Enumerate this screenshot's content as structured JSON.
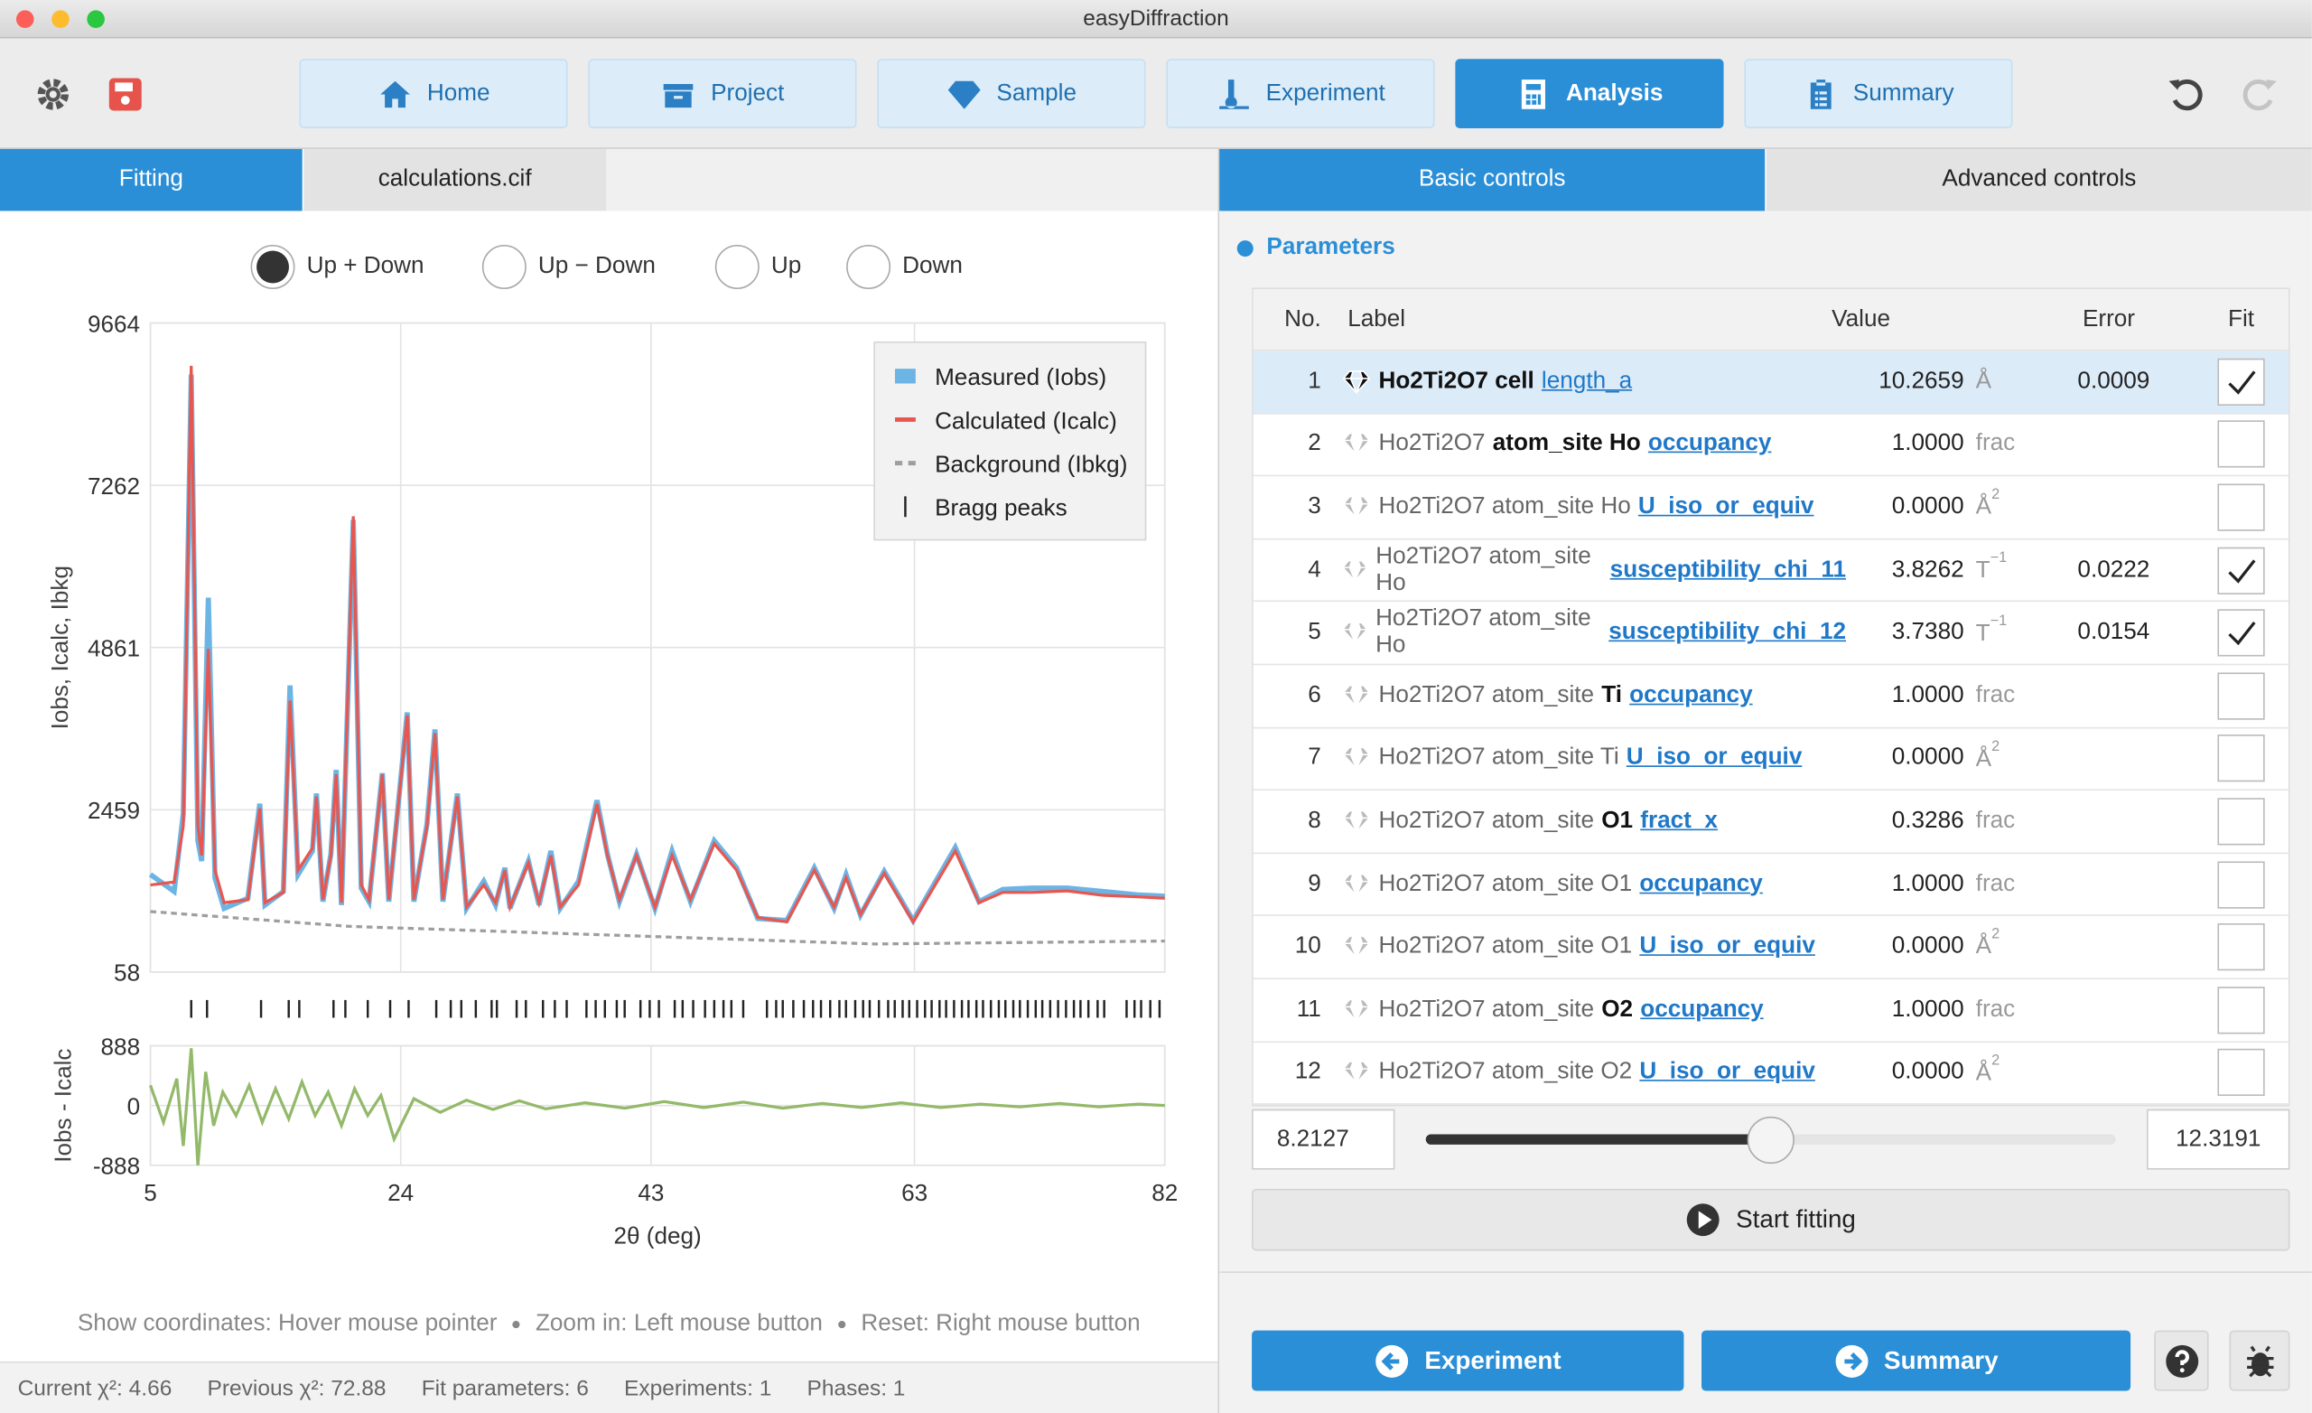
{
  "window": {
    "title": "easyDiffraction"
  },
  "toolbar": {
    "tabs": [
      "Home",
      "Project",
      "Sample",
      "Experiment",
      "Analysis",
      "Summary"
    ],
    "active": 4
  },
  "left_tabs": {
    "tabs": [
      "Fitting",
      "calculations.cif"
    ],
    "active": 0
  },
  "right_tabs": {
    "tabs": [
      "Basic controls",
      "Advanced controls"
    ],
    "active": 0
  },
  "plot_modes": {
    "options": [
      "Up + Down",
      "Up − Down",
      "Up",
      "Down"
    ],
    "selected": 0
  },
  "chart_data": {
    "type": "line",
    "xlabel": "2θ (deg)",
    "ylabel": "Iobs, Icalc, Ibkg",
    "xlim": [
      5,
      82
    ],
    "xticks": [
      5,
      24,
      43,
      63,
      82
    ],
    "ylim": [
      58,
      9664
    ],
    "yticks": [
      58,
      2459,
      4861,
      7262,
      9664
    ],
    "grid": true,
    "legend": "top-right",
    "x": [
      5.0,
      6.8,
      7.5,
      8.1,
      8.6,
      8.9,
      9.4,
      9.9,
      10.6,
      12.4,
      13.3,
      13.7,
      15.1,
      15.6,
      16.2,
      17.3,
      17.6,
      18.1,
      18.7,
      19.1,
      19.5,
      20.4,
      21.0,
      21.6,
      22.6,
      23.1,
      24.5,
      25.0,
      26.0,
      26.6,
      27.2,
      28.3,
      29.0,
      30.3,
      31.2,
      31.9,
      32.3,
      33.7,
      34.5,
      35.4,
      36.1,
      37.5,
      38.9,
      39.7,
      40.6,
      41.9,
      43.3,
      44.6,
      46.0,
      47.8,
      49.5,
      51.1,
      53.3,
      55.4,
      56.9,
      57.8,
      58.9,
      60.7,
      62.9,
      66.1,
      67.9,
      69.7,
      71.9,
      74.6,
      77.3,
      79.9,
      82.0
    ],
    "series": [
      {
        "name": "Measured (Iobs)",
        "color": "#6cb4e4",
        "values": [
          1500,
          1250,
          2400,
          8900,
          2000,
          1700,
          5600,
          1450,
          1000,
          1150,
          2550,
          1050,
          1250,
          4300,
          1500,
          1850,
          2700,
          1100,
          1800,
          3050,
          1050,
          6750,
          1300,
          1100,
          3000,
          1100,
          3900,
          1100,
          2250,
          3650,
          1100,
          2700,
          1000,
          1400,
          1050,
          1600,
          1000,
          1700,
          1050,
          1850,
          1000,
          1400,
          2600,
          1800,
          1100,
          1800,
          1000,
          1850,
          1100,
          2000,
          1600,
          850,
          820,
          1600,
          1000,
          1500,
          900,
          1550,
          820,
          1900,
          1100,
          1280,
          1300,
          1300,
          1250,
          1200,
          1180
        ]
      },
      {
        "name": "Calculated (Icalc)",
        "color": "#e8574f",
        "values": [
          1346,
          1390,
          2219,
          9031,
          2219,
          1783,
          4839,
          1564,
          1084,
          1127,
          2481,
          1084,
          1237,
          4075,
          1564,
          1892,
          2656,
          1127,
          1783,
          2984,
          1084,
          6804,
          1346,
          1127,
          2984,
          1127,
          3857,
          1127,
          2219,
          3595,
          1127,
          2656,
          1019,
          1346,
          1084,
          1564,
          1019,
          1674,
          1084,
          1783,
          1019,
          1346,
          2547,
          1783,
          1127,
          1783,
          1019,
          1783,
          1127,
          1957,
          1564,
          866,
          800,
          1564,
          1019,
          1455,
          909,
          1521,
          800,
          1848,
          1084,
          1237,
          1237,
          1259,
          1193,
          1171,
          1149
        ]
      }
    ],
    "background": {
      "name": "Background (Ibkg)",
      "color": "#9e9e9e",
      "x": [
        5,
        20,
        40,
        60,
        82
      ],
      "values": [
        953,
        735,
        604,
        473,
        516
      ]
    },
    "bragg": {
      "name": "Bragg peaks",
      "color": "#222222",
      "x": [
        8.1,
        9.3,
        13.4,
        15.5,
        16.3,
        18.9,
        19.8,
        21.5,
        23.2,
        24.6,
        26.7,
        27.8,
        28.6,
        29.7,
        30.9,
        31.3,
        32.8,
        33.5,
        34.8,
        35.7,
        36.6,
        38.1,
        38.8,
        39.5,
        40.4,
        41.0,
        42.2,
        42.9,
        43.6,
        44.8,
        45.4,
        46.2,
        47.1,
        47.8,
        48.5,
        49.1,
        50.0,
        51.8,
        52.5,
        53.0,
        53.8,
        54.6,
        55.3,
        55.9,
        56.6,
        57.3,
        57.8,
        58.5,
        59.1,
        59.6,
        60.3,
        61.0,
        61.5,
        62.1,
        62.6,
        63.2,
        63.8,
        64.3,
        64.9,
        65.4,
        66.0,
        66.6,
        67.1,
        67.7,
        68.2,
        68.8,
        69.4,
        69.9,
        70.5,
        71.0,
        71.6,
        72.2,
        72.7,
        73.3,
        73.9,
        74.5,
        75.1,
        75.6,
        76.2,
        76.9,
        77.4,
        79.1,
        79.7,
        80.2,
        80.9,
        81.6
      ]
    },
    "residual": {
      "ylabel": "Iobs - Icalc",
      "ylim": [
        -888,
        888
      ],
      "yticks": [
        -888,
        0,
        888
      ],
      "color": "#93b96a",
      "x": [
        5,
        6,
        7,
        7.5,
        8.1,
        8.6,
        9.2,
        9.8,
        10.5,
        11.5,
        12.5,
        13.5,
        14.5,
        15.5,
        16.5,
        17.5,
        18.5,
        19.5,
        20.5,
        21.5,
        22.5,
        23.5,
        25,
        27,
        29,
        31,
        33,
        35,
        38,
        41,
        44,
        47,
        50,
        53,
        56,
        59,
        62,
        65,
        68,
        71,
        74,
        77,
        80,
        82
      ],
      "values": [
        300,
        -250,
        400,
        -600,
        850,
        -888,
        500,
        -300,
        200,
        -150,
        300,
        -250,
        250,
        -200,
        350,
        -150,
        200,
        -300,
        250,
        -150,
        150,
        -500,
        100,
        -100,
        80,
        -60,
        70,
        -50,
        40,
        -40,
        60,
        -30,
        50,
        -40,
        30,
        -30,
        40,
        -30,
        20,
        -20,
        30,
        -20,
        20,
        0
      ]
    }
  },
  "parameters": {
    "title": "Parameters",
    "columns": [
      "No.",
      "Label",
      "Value",
      "Error",
      "Fit"
    ],
    "rows": [
      {
        "no": "1",
        "label": [
          {
            "text": "Ho2Ti2O7 cell",
            "style": "bold"
          },
          {
            "text": "length_a",
            "style": "link"
          }
        ],
        "value": "10.2659",
        "unit": "Å",
        "error": "0.0009",
        "fit": true,
        "selected": true
      },
      {
        "no": "2",
        "label": [
          {
            "text": "Ho2Ti2O7",
            "style": "plain"
          },
          {
            "text": "atom_site Ho",
            "style": "bold"
          },
          {
            "text": "occupancy",
            "style": "link"
          }
        ],
        "value": "1.0000",
        "unit": "frac",
        "fit": false
      },
      {
        "no": "3",
        "label": [
          {
            "text": "Ho2Ti2O7 atom_site Ho",
            "style": "plain"
          },
          {
            "text": "U_iso_or_equiv",
            "style": "link"
          }
        ],
        "value": "0.0000",
        "unit": "Å",
        "unit_sup": "2",
        "fit": false
      },
      {
        "no": "4",
        "label": [
          {
            "text": "Ho2Ti2O7 atom_site Ho",
            "style": "plain"
          },
          {
            "text": "susceptibility_chi_11",
            "style": "link"
          }
        ],
        "value": "3.8262",
        "unit": "T",
        "unit_sup": "−1",
        "error": "0.0222",
        "fit": true
      },
      {
        "no": "5",
        "label": [
          {
            "text": "Ho2Ti2O7 atom_site Ho",
            "style": "plain"
          },
          {
            "text": "susceptibility_chi_12",
            "style": "link"
          }
        ],
        "value": "3.7380",
        "unit": "T",
        "unit_sup": "−1",
        "error": "0.0154",
        "fit": true
      },
      {
        "no": "6",
        "label": [
          {
            "text": "Ho2Ti2O7 atom_site",
            "style": "plain"
          },
          {
            "text": "Ti",
            "style": "bold"
          },
          {
            "text": "occupancy",
            "style": "link"
          }
        ],
        "value": "1.0000",
        "unit": "frac",
        "fit": false
      },
      {
        "no": "7",
        "label": [
          {
            "text": "Ho2Ti2O7 atom_site Ti",
            "style": "plain"
          },
          {
            "text": "U_iso_or_equiv",
            "style": "link"
          }
        ],
        "value": "0.0000",
        "unit": "Å",
        "unit_sup": "2",
        "fit": false
      },
      {
        "no": "8",
        "label": [
          {
            "text": "Ho2Ti2O7 atom_site",
            "style": "plain"
          },
          {
            "text": "O1",
            "style": "bold"
          },
          {
            "text": "fract_x",
            "style": "link"
          }
        ],
        "value": "0.3286",
        "unit": "frac",
        "fit": false
      },
      {
        "no": "9",
        "label": [
          {
            "text": "Ho2Ti2O7 atom_site O1",
            "style": "plain"
          },
          {
            "text": "occupancy",
            "style": "link"
          }
        ],
        "value": "1.0000",
        "unit": "frac",
        "fit": false
      },
      {
        "no": "10",
        "label": [
          {
            "text": "Ho2Ti2O7 atom_site O1",
            "style": "plain"
          },
          {
            "text": "U_iso_or_equiv",
            "style": "link"
          }
        ],
        "value": "0.0000",
        "unit": "Å",
        "unit_sup": "2",
        "fit": false
      },
      {
        "no": "11",
        "label": [
          {
            "text": "Ho2Ti2O7 atom_site",
            "style": "plain"
          },
          {
            "text": "O2",
            "style": "bold"
          },
          {
            "text": "occupancy",
            "style": "link"
          }
        ],
        "value": "1.0000",
        "unit": "frac",
        "fit": false
      },
      {
        "no": "12",
        "label": [
          {
            "text": "Ho2Ti2O7 atom_site O2",
            "style": "plain"
          },
          {
            "text": "U_iso_or_equiv",
            "style": "link"
          }
        ],
        "value": "0.0000",
        "unit": "Å",
        "unit_sup": "2",
        "fit": false
      }
    ]
  },
  "slider": {
    "min": "8.2127",
    "max": "12.3191"
  },
  "start_button": "Start fitting",
  "nav": {
    "back": "Experiment",
    "next": "Summary"
  },
  "hints": [
    "Show coordinates: Hover mouse pointer",
    "Zoom in: Left mouse button",
    "Reset: Right mouse button"
  ],
  "status": [
    "Current χ²: 4.66",
    "Previous χ²: 72.88",
    "Fit parameters: 6",
    "Experiments: 1",
    "Phases: 1"
  ]
}
